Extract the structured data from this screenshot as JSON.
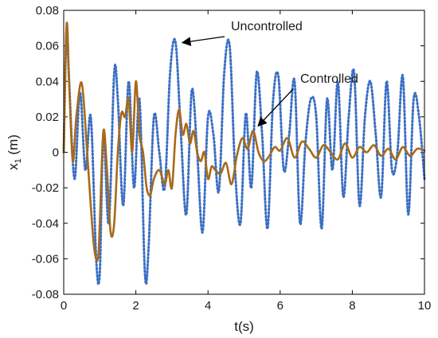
{
  "chart_data": {
    "type": "line",
    "title": "",
    "xlabel": "t(s)",
    "ylabel_main": "x",
    "ylabel_sub": "1",
    "ylabel_unit": " (m)",
    "xlim": [
      0,
      10
    ],
    "ylim": [
      -0.08,
      0.08
    ],
    "xticks": [
      0,
      2,
      4,
      6,
      8,
      10
    ],
    "yticks": [
      -0.08,
      -0.06,
      -0.04,
      -0.02,
      0,
      0.02,
      0.04,
      0.06,
      0.08
    ],
    "xtick_labels": [
      "0",
      "2",
      "4",
      "6",
      "8",
      "10"
    ],
    "ytick_labels": [
      "-0.08",
      "-0.06",
      "-0.04",
      "-0.02",
      "0",
      "0.02",
      "0.04",
      "0.06",
      "0.08"
    ],
    "grid": false,
    "series": [
      {
        "name": "Uncontrolled",
        "style": "dotted",
        "color": "#3b6fc4",
        "x": [
          0,
          0.08,
          0.15,
          0.3,
          0.45,
          0.6,
          0.75,
          0.9,
          1.0,
          1.1,
          1.25,
          1.4,
          1.5,
          1.65,
          1.8,
          1.95,
          2.1,
          2.25,
          2.35,
          2.5,
          2.65,
          2.8,
          2.95,
          3.1,
          3.25,
          3.4,
          3.55,
          3.7,
          3.85,
          4.0,
          4.15,
          4.3,
          4.45,
          4.6,
          4.75,
          4.9,
          5.05,
          5.2,
          5.35,
          5.5,
          5.65,
          5.8,
          5.95,
          6.1,
          6.25,
          6.4,
          6.55,
          6.7,
          6.85,
          7.0,
          7.15,
          7.3,
          7.45,
          7.6,
          7.75,
          7.9,
          8.05,
          8.2,
          8.35,
          8.5,
          8.65,
          8.8,
          8.95,
          9.1,
          9.25,
          9.4,
          9.55,
          9.7,
          9.85,
          10.0
        ],
        "y": [
          0.0,
          0.07,
          0.04,
          -0.015,
          0.034,
          -0.01,
          0.02,
          -0.06,
          -0.068,
          0.01,
          -0.04,
          0.045,
          0.03,
          -0.03,
          0.04,
          -0.02,
          0.03,
          -0.068,
          -0.055,
          0.02,
          0.0,
          -0.02,
          0.045,
          0.062,
          0.01,
          -0.035,
          0.035,
          0.0,
          -0.045,
          0.02,
          0.01,
          -0.022,
          0.045,
          0.06,
          -0.01,
          -0.04,
          0.022,
          -0.02,
          0.045,
          0.01,
          -0.043,
          0.028,
          0.043,
          -0.01,
          0.01,
          0.04,
          -0.04,
          0.005,
          0.03,
          0.02,
          -0.043,
          0.03,
          -0.01,
          0.04,
          -0.025,
          0.02,
          0.045,
          -0.03,
          0.02,
          0.04,
          0.01,
          -0.025,
          0.04,
          -0.01,
          0.0,
          0.043,
          -0.035,
          0.03,
          0.02,
          -0.015
        ]
      },
      {
        "name": "Controlled",
        "style": "solid",
        "color": "#a86a1a",
        "x": [
          0,
          0.08,
          0.15,
          0.25,
          0.35,
          0.5,
          0.65,
          0.75,
          0.85,
          0.95,
          1.0,
          1.1,
          1.2,
          1.3,
          1.4,
          1.5,
          1.6,
          1.7,
          1.8,
          1.9,
          2.0,
          2.1,
          2.2,
          2.3,
          2.4,
          2.5,
          2.65,
          2.8,
          2.9,
          3.0,
          3.1,
          3.2,
          3.3,
          3.4,
          3.5,
          3.6,
          3.7,
          3.8,
          3.9,
          4.0,
          4.1,
          4.2,
          4.35,
          4.5,
          4.65,
          4.8,
          4.95,
          5.1,
          5.25,
          5.4,
          5.55,
          5.7,
          5.85,
          6.0,
          6.2,
          6.4,
          6.6,
          6.8,
          7.0,
          7.2,
          7.4,
          7.6,
          7.8,
          8.0,
          8.2,
          8.4,
          8.6,
          8.8,
          9.0,
          9.2,
          9.4,
          9.6,
          9.8,
          10.0
        ],
        "y": [
          0.0,
          0.072,
          0.04,
          -0.005,
          0.02,
          0.039,
          0.0,
          -0.03,
          -0.055,
          -0.06,
          -0.04,
          0.012,
          -0.01,
          -0.045,
          -0.04,
          0.0,
          0.022,
          0.02,
          0.03,
          0.0,
          0.04,
          0.01,
          0.0,
          -0.02,
          -0.024,
          -0.015,
          -0.01,
          -0.018,
          -0.01,
          -0.02,
          0.01,
          0.024,
          0.01,
          0.016,
          0.005,
          0.012,
          0.0,
          -0.005,
          0.0,
          -0.015,
          -0.008,
          -0.01,
          -0.012,
          -0.006,
          -0.018,
          -0.002,
          0.008,
          0.002,
          0.012,
          0.0,
          -0.005,
          -0.002,
          0.003,
          0.001,
          0.008,
          -0.003,
          0.006,
          0.002,
          -0.003,
          0.004,
          0.0,
          -0.004,
          0.005,
          -0.003,
          0.003,
          0.0,
          0.004,
          -0.002,
          0.002,
          -0.004,
          0.003,
          -0.002,
          0.002,
          0.001
        ]
      }
    ],
    "annotations": [
      {
        "text": "Uncontrolled",
        "target_x": 3.2,
        "target_y": 0.06
      },
      {
        "text": "Controlled",
        "target_x": 5.3,
        "target_y": 0.013
      }
    ]
  }
}
